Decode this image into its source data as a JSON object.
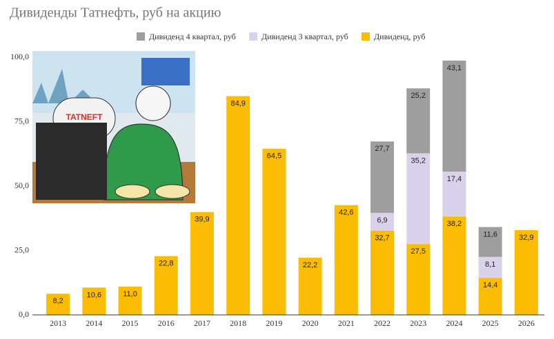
{
  "chart_data": {
    "type": "stacked_bar",
    "title": "Дивиденды Татнефть, руб на акцию",
    "categories": [
      "2013",
      "2014",
      "2015",
      "2016",
      "2017",
      "2018",
      "2019",
      "2020",
      "2021",
      "2022",
      "2023",
      "2024",
      "2025",
      "2026"
    ],
    "series": [
      {
        "name": "Дивиденд, руб",
        "color": "#fbbc04",
        "values": [
          8.2,
          10.6,
          11.0,
          22.8,
          39.9,
          84.9,
          64.5,
          22.2,
          42.6,
          32.7,
          27.5,
          38.2,
          14.4,
          32.9
        ],
        "value_labels": [
          "8,2",
          "10,6",
          "11,0",
          "22,8",
          "39,9",
          "84,9",
          "64,5",
          "22,2",
          "42,6",
          "32,7",
          "27,5",
          "38,2",
          "14,4",
          "32,9"
        ]
      },
      {
        "name": "Дивиденд 3 квартал, руб",
        "color": "#dad2ea",
        "values": [
          null,
          null,
          null,
          null,
          null,
          null,
          null,
          null,
          null,
          6.9,
          35.2,
          17.4,
          8.1,
          null
        ],
        "value_labels": [
          null,
          null,
          null,
          null,
          null,
          null,
          null,
          null,
          null,
          "6,9",
          "35,2",
          "17,4",
          "8,1",
          null
        ]
      },
      {
        "name": "Дивиденд 4 квартал, руб",
        "color": "#9e9e9e",
        "values": [
          null,
          null,
          null,
          null,
          null,
          null,
          null,
          null,
          null,
          27.7,
          25.2,
          43.1,
          11.6,
          null
        ],
        "value_labels": [
          null,
          null,
          null,
          null,
          null,
          null,
          null,
          null,
          null,
          "27,7",
          "25,2",
          "43,1",
          "11,6",
          null
        ]
      }
    ],
    "ylim": [
      0,
      100
    ],
    "yticks": [
      {
        "value": 0,
        "label": "0,0"
      },
      {
        "value": 25,
        "label": "25,0"
      },
      {
        "value": 50,
        "label": "50,0"
      },
      {
        "value": 75,
        "label": "75,0"
      },
      {
        "value": 100,
        "label": "100,0"
      }
    ],
    "grid": false,
    "legend": "top"
  },
  "illustration": {
    "logo": "TATNEFT"
  }
}
